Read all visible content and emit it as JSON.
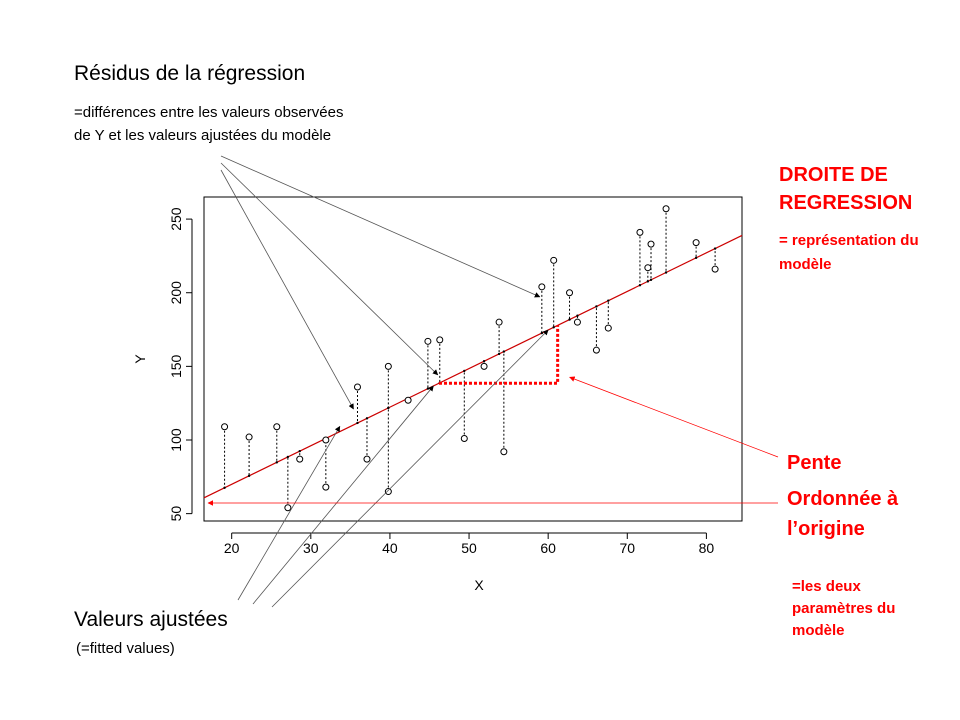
{
  "annotations": {
    "residus_title": "Résidus de la régression",
    "residus_sub_1": "=différences entre les valeurs observées",
    "residus_sub_2": "de Y et les valeurs ajustées du modèle",
    "fitted_title": "Valeurs ajustées",
    "fitted_sub": "(=fitted values)",
    "droite_1": "DROITE DE",
    "droite_2": "REGRESSION",
    "droite_sub_1": "= représentation du",
    "droite_sub_2": "modèle",
    "pente": "Pente",
    "ordonnee_1": "Ordonnée à",
    "ordonnee_2": "l’origine",
    "params_1": "=les deux",
    "params_2": "paramètres du",
    "params_3": "modèle"
  },
  "colors": {
    "line": "#cc0000",
    "annotation": "#ff0000",
    "points": "#000000"
  },
  "chart_data": {
    "type": "scatter",
    "xlabel": "X",
    "ylabel": "Y",
    "xlim": [
      16.5,
      84.5
    ],
    "ylim": [
      45,
      265
    ],
    "xticks": [
      20,
      30,
      40,
      50,
      60,
      70,
      80
    ],
    "yticks": [
      50,
      100,
      150,
      200,
      250
    ],
    "regression": {
      "intercept": 17.5,
      "slope": 2.62
    },
    "points": [
      {
        "x": 19.1,
        "y": 109
      },
      {
        "x": 22.2,
        "y": 102
      },
      {
        "x": 25.7,
        "y": 109
      },
      {
        "x": 27.1,
        "y": 54
      },
      {
        "x": 28.6,
        "y": 87
      },
      {
        "x": 31.9,
        "y": 68
      },
      {
        "x": 31.9,
        "y": 100
      },
      {
        "x": 35.9,
        "y": 136
      },
      {
        "x": 37.1,
        "y": 87
      },
      {
        "x": 39.8,
        "y": 65
      },
      {
        "x": 39.8,
        "y": 150
      },
      {
        "x": 42.3,
        "y": 127
      },
      {
        "x": 44.8,
        "y": 167
      },
      {
        "x": 46.3,
        "y": 168
      },
      {
        "x": 49.4,
        "y": 101
      },
      {
        "x": 51.9,
        "y": 150
      },
      {
        "x": 53.8,
        "y": 180
      },
      {
        "x": 54.4,
        "y": 92
      },
      {
        "x": 59.2,
        "y": 204
      },
      {
        "x": 60.7,
        "y": 222
      },
      {
        "x": 62.7,
        "y": 200
      },
      {
        "x": 63.7,
        "y": 180
      },
      {
        "x": 66.1,
        "y": 161
      },
      {
        "x": 67.6,
        "y": 176
      },
      {
        "x": 71.6,
        "y": 241
      },
      {
        "x": 72.6,
        "y": 217
      },
      {
        "x": 73.0,
        "y": 233
      },
      {
        "x": 74.9,
        "y": 257
      },
      {
        "x": 78.7,
        "y": 234
      },
      {
        "x": 81.1,
        "y": 216
      }
    ]
  }
}
